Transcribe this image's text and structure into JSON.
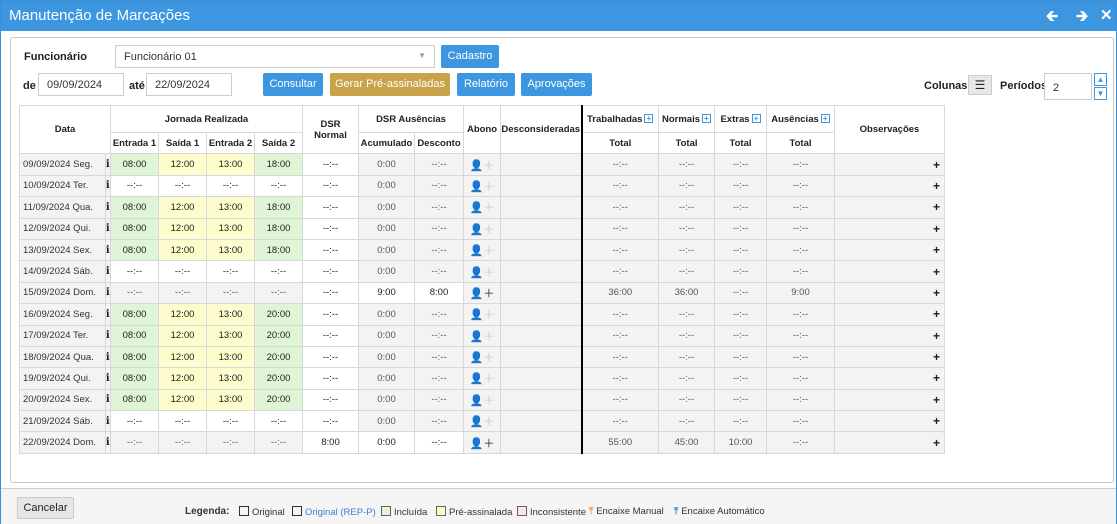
{
  "window": {
    "title": "Manutenção de Marcações"
  },
  "filters": {
    "funcionario_label": "Funcionário",
    "funcionario_value": "Funcionário 01",
    "de_label": "de",
    "de_value": "09/09/2024",
    "ate_label": "até",
    "ate_value": "22/09/2024",
    "colunas_label": "Colunas:",
    "periodos_label": "Períodos:",
    "periodos_value": "2"
  },
  "buttons": {
    "cadastro": "Cadastro",
    "consultar": "Consultar",
    "gerar": "Gerar Pré-assinaladas",
    "relatorio": "Relatório",
    "aprovacoes": "Aprovações",
    "cancelar": "Cancelar"
  },
  "header": {
    "data": "Data",
    "jornada": "Jornada Realizada",
    "entrada1": "Entrada 1",
    "saida1": "Saída 1",
    "entrada2": "Entrada 2",
    "saida2": "Saída 2",
    "dsr_normal": "DSR Normal",
    "dsr_ausencias": "DSR Ausências",
    "acumulado": "Acumulado",
    "desconto": "Desconto",
    "abono": "Abono",
    "desconsideradas": "Desconsideradas",
    "trabalhadas": "Trabalhadas",
    "normais": "Normais",
    "extras": "Extras",
    "ausencias": "Ausências",
    "total": "Total",
    "observacoes": "Observações"
  },
  "rows": [
    {
      "date": "09/09/2024 Seg.",
      "e1": "08:00",
      "s1": "12:00",
      "e2": "13:00",
      "s2": "18:00",
      "status": [
        "g",
        "y",
        "y",
        "g"
      ],
      "dsr": "--:--",
      "acum": "0:00",
      "desc": "--:--",
      "abono": "gray",
      "trab": "--:--",
      "norm": "--:--",
      "ext": "--:--",
      "aus": "--:--"
    },
    {
      "date": "10/09/2024 Ter.",
      "e1": "--:--",
      "s1": "--:--",
      "e2": "--:--",
      "s2": "--:--",
      "status": [
        "w",
        "w",
        "w",
        "w"
      ],
      "dsr": "--:--",
      "acum": "0:00",
      "desc": "--:--",
      "abono": "gray",
      "trab": "--:--",
      "norm": "--:--",
      "ext": "--:--",
      "aus": "--:--"
    },
    {
      "date": "11/09/2024 Qua.",
      "e1": "08:00",
      "s1": "12:00",
      "e2": "13:00",
      "s2": "18:00",
      "status": [
        "g",
        "y",
        "y",
        "g"
      ],
      "dsr": "--:--",
      "acum": "0:00",
      "desc": "--:--",
      "abono": "gray",
      "trab": "--:--",
      "norm": "--:--",
      "ext": "--:--",
      "aus": "--:--"
    },
    {
      "date": "12/09/2024 Qui.",
      "e1": "08:00",
      "s1": "12:00",
      "e2": "13:00",
      "s2": "18:00",
      "status": [
        "g",
        "y",
        "y",
        "g"
      ],
      "dsr": "--:--",
      "acum": "0:00",
      "desc": "--:--",
      "abono": "gray",
      "trab": "--:--",
      "norm": "--:--",
      "ext": "--:--",
      "aus": "--:--"
    },
    {
      "date": "13/09/2024 Sex.",
      "e1": "08:00",
      "s1": "12:00",
      "e2": "13:00",
      "s2": "18:00",
      "status": [
        "g",
        "y",
        "y",
        "g"
      ],
      "dsr": "--:--",
      "acum": "0:00",
      "desc": "--:--",
      "abono": "gray",
      "trab": "--:--",
      "norm": "--:--",
      "ext": "--:--",
      "aus": "--:--"
    },
    {
      "date": "14/09/2024 Sáb.",
      "e1": "--:--",
      "s1": "--:--",
      "e2": "--:--",
      "s2": "--:--",
      "status": [
        "w",
        "w",
        "w",
        "w"
      ],
      "dsr": "--:--",
      "acum": "0:00",
      "desc": "--:--",
      "abono": "gray",
      "trab": "--:--",
      "norm": "--:--",
      "ext": "--:--",
      "aus": "--:--"
    },
    {
      "date": "15/09/2024 Dom.",
      "e1": "--:--",
      "s1": "--:--",
      "e2": "--:--",
      "s2": "--:--",
      "status": [
        "gr",
        "gr",
        "gr",
        "gr"
      ],
      "dsr": "--:--",
      "acum": "9:00",
      "desc": "8:00",
      "abono": "dark",
      "trab": "36:00",
      "norm": "36:00",
      "ext": "--:--",
      "aus": "9:00",
      "white": true
    },
    {
      "date": "16/09/2024 Seg.",
      "e1": "08:00",
      "s1": "12:00",
      "e2": "13:00",
      "s2": "20:00",
      "status": [
        "g",
        "y",
        "y",
        "g"
      ],
      "dsr": "--:--",
      "acum": "0:00",
      "desc": "--:--",
      "abono": "gray",
      "trab": "--:--",
      "norm": "--:--",
      "ext": "--:--",
      "aus": "--:--"
    },
    {
      "date": "17/09/2024 Ter.",
      "e1": "08:00",
      "s1": "12:00",
      "e2": "13:00",
      "s2": "20:00",
      "status": [
        "g",
        "y",
        "y",
        "g"
      ],
      "dsr": "--:--",
      "acum": "0:00",
      "desc": "--:--",
      "abono": "gray",
      "trab": "--:--",
      "norm": "--:--",
      "ext": "--:--",
      "aus": "--:--"
    },
    {
      "date": "18/09/2024 Qua.",
      "e1": "08:00",
      "s1": "12:00",
      "e2": "13:00",
      "s2": "20:00",
      "status": [
        "g",
        "y",
        "y",
        "g"
      ],
      "dsr": "--:--",
      "acum": "0:00",
      "desc": "--:--",
      "abono": "gray",
      "trab": "--:--",
      "norm": "--:--",
      "ext": "--:--",
      "aus": "--:--"
    },
    {
      "date": "19/09/2024 Qui.",
      "e1": "08:00",
      "s1": "12:00",
      "e2": "13:00",
      "s2": "20:00",
      "status": [
        "g",
        "y",
        "y",
        "g"
      ],
      "dsr": "--:--",
      "acum": "0:00",
      "desc": "--:--",
      "abono": "gray",
      "trab": "--:--",
      "norm": "--:--",
      "ext": "--:--",
      "aus": "--:--"
    },
    {
      "date": "20/09/2024 Sex.",
      "e1": "08:00",
      "s1": "12:00",
      "e2": "13:00",
      "s2": "20:00",
      "status": [
        "g",
        "y",
        "y",
        "g"
      ],
      "dsr": "--:--",
      "acum": "0:00",
      "desc": "--:--",
      "abono": "gray",
      "trab": "--:--",
      "norm": "--:--",
      "ext": "--:--",
      "aus": "--:--"
    },
    {
      "date": "21/09/2024 Sáb.",
      "e1": "--:--",
      "s1": "--:--",
      "e2": "--:--",
      "s2": "--:--",
      "status": [
        "w",
        "w",
        "w",
        "w"
      ],
      "dsr": "--:--",
      "acum": "0:00",
      "desc": "--:--",
      "abono": "gray",
      "trab": "--:--",
      "norm": "--:--",
      "ext": "--:--",
      "aus": "--:--"
    },
    {
      "date": "22/09/2024 Dom.",
      "e1": "--:--",
      "s1": "--:--",
      "e2": "--:--",
      "s2": "--:--",
      "status": [
        "gr",
        "gr",
        "gr",
        "gr"
      ],
      "dsr": "8:00",
      "acum": "0:00",
      "desc": "--:--",
      "abono": "dark",
      "trab": "55:00",
      "norm": "45:00",
      "ext": "10:00",
      "aus": "--:--",
      "white": true
    }
  ],
  "legend": {
    "title": "Legenda:",
    "original": "Original",
    "original_rep": "Original (REP-P)",
    "incluida": "Incluída",
    "pre": "Pré-assinalada",
    "inconsistente": "Inconsistente",
    "encaixe_manual": "Encaixe Manual",
    "encaixe_auto": "Encaixe Automático"
  },
  "colors": {
    "accent": "#3d97e0",
    "gold": "#c9a24a",
    "incluida": "#dff5d8",
    "pre": "#fdfccd",
    "inconsistente": "#fde0e0",
    "encaixe_manual": "#f0a030",
    "encaixe_auto": "#3d7fd6"
  },
  "icons": {
    "back": "arrow-left-icon",
    "forward": "arrow-right-icon",
    "close": "close-icon",
    "info": "info-icon",
    "user_add": "user-add-icon",
    "plus": "plus-icon",
    "list": "list-icon",
    "pin": "pin-icon"
  }
}
